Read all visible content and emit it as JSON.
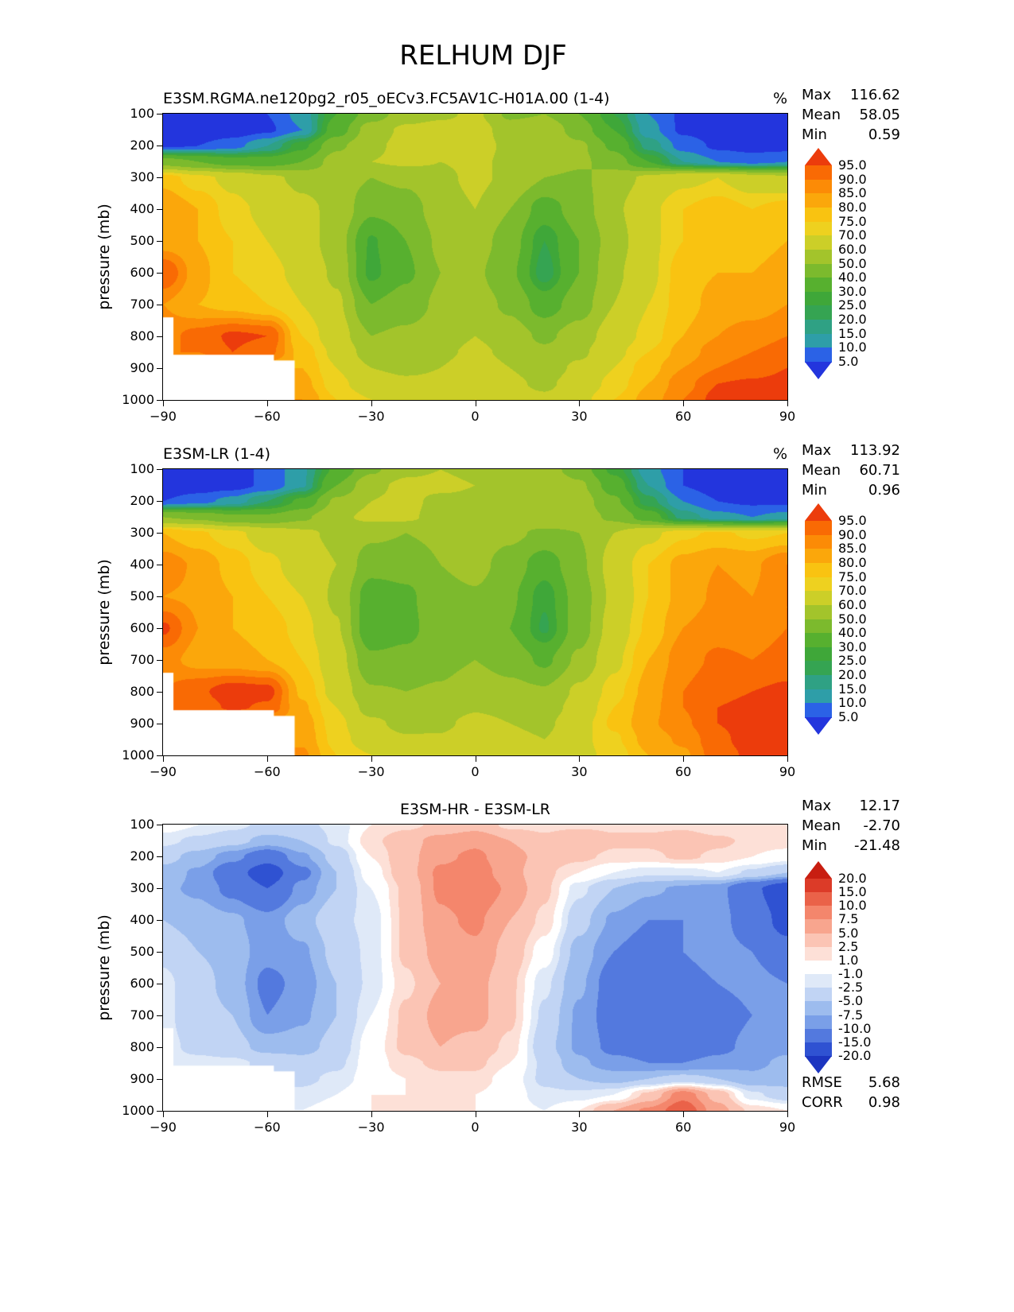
{
  "title": "RELHUM DJF",
  "axis": {
    "ylabel": "pressure (mb)",
    "yticks": [
      "100",
      "200",
      "300",
      "400",
      "500",
      "600",
      "700",
      "800",
      "900",
      "1000"
    ],
    "xticks": [
      "−90",
      "−60",
      "−30",
      "0",
      "30",
      "60",
      "90"
    ]
  },
  "panels": [
    {
      "title": "E3SM.RGMA.ne120pg2_r05_oECv3.FC5AV1C-H01A.00 (1-4)",
      "units": "%",
      "stats": [
        {
          "label": "Max",
          "value": "116.62"
        },
        {
          "label": "Mean",
          "value": "58.05"
        },
        {
          "label": "Min",
          "value": "0.59"
        }
      ],
      "colorbar_labels": [
        "95.0",
        "90.0",
        "85.0",
        "80.0",
        "75.0",
        "70.0",
        "60.0",
        "50.0",
        "40.0",
        "30.0",
        "25.0",
        "20.0",
        "15.0",
        "10.0",
        "5.0"
      ]
    },
    {
      "title": "E3SM-LR (1-4)",
      "units": "%",
      "stats": [
        {
          "label": "Max",
          "value": "113.92"
        },
        {
          "label": "Mean",
          "value": "60.71"
        },
        {
          "label": "Min",
          "value": "0.96"
        }
      ],
      "colorbar_labels": [
        "95.0",
        "90.0",
        "85.0",
        "80.0",
        "75.0",
        "70.0",
        "60.0",
        "50.0",
        "40.0",
        "30.0",
        "25.0",
        "20.0",
        "15.0",
        "10.0",
        "5.0"
      ]
    },
    {
      "title": "E3SM-HR - E3SM-LR",
      "units": "",
      "stats": [
        {
          "label": "Max",
          "value": "12.17"
        },
        {
          "label": "Mean",
          "value": "-2.70"
        },
        {
          "label": "Min",
          "value": "-21.48"
        }
      ],
      "colorbar_labels": [
        "20.0",
        "15.0",
        "10.0",
        "7.5",
        "5.0",
        "2.5",
        "1.0",
        "-1.0",
        "-2.5",
        "-5.0",
        "-7.5",
        "-10.0",
        "-15.0",
        "-20.0"
      ],
      "footer_stats": [
        {
          "label": "RMSE",
          "value": "5.68"
        },
        {
          "label": "CORR",
          "value": "0.98"
        }
      ]
    }
  ],
  "chart_data": [
    {
      "type": "heatmap",
      "name": "E3SM-HR (1-4) relative humidity (%)",
      "x_lat": [
        -90,
        -80,
        -70,
        -60,
        -50,
        -40,
        -30,
        -20,
        -10,
        0,
        10,
        20,
        30,
        40,
        50,
        60,
        70,
        80,
        90
      ],
      "y_pressure_mb": [
        100,
        150,
        200,
        250,
        300,
        400,
        500,
        600,
        700,
        800,
        850,
        900,
        950,
        1000
      ],
      "levels": [
        5,
        10,
        15,
        20,
        25,
        30,
        40,
        50,
        60,
        70,
        75,
        80,
        85,
        90,
        95
      ],
      "colors": [
        "#2335dd",
        "#2b62e6",
        "#2e9ea8",
        "#2fa184",
        "#35a452",
        "#3fa739",
        "#57b02f",
        "#7cba2d",
        "#a3c42b",
        "#cccf28",
        "#eed11f",
        "#f9c311",
        "#fba70b",
        "#fc8b06",
        "#f96a04",
        "#ec3c0c"
      ],
      "mask_lat_pressure_rects": [
        [
          -90,
          -58,
          860,
          1000
        ],
        [
          -90,
          -52,
          878,
          1000
        ],
        [
          -90,
          -87,
          742,
          1000
        ]
      ],
      "values": [
        [
          2,
          2,
          3,
          5,
          12,
          30,
          45,
          55,
          58,
          62,
          48,
          50,
          40,
          25,
          10,
          4,
          2,
          2,
          2
        ],
        [
          1,
          1,
          2,
          4,
          10,
          35,
          55,
          62,
          64,
          65,
          55,
          58,
          45,
          30,
          12,
          4,
          2,
          1,
          1
        ],
        [
          4,
          5,
          8,
          15,
          28,
          48,
          58,
          63,
          62,
          64,
          58,
          60,
          52,
          38,
          18,
          8,
          4,
          3,
          3
        ],
        [
          45,
          40,
          35,
          35,
          40,
          55,
          60,
          62,
          60,
          62,
          58,
          58,
          52,
          45,
          30,
          15,
          10,
          8,
          10
        ],
        [
          78,
          72,
          68,
          62,
          58,
          55,
          50,
          52,
          58,
          62,
          58,
          50,
          48,
          55,
          62,
          68,
          70,
          65,
          62
        ],
        [
          85,
          80,
          72,
          68,
          62,
          58,
          42,
          45,
          55,
          60,
          50,
          35,
          45,
          58,
          68,
          75,
          78,
          75,
          78
        ],
        [
          82,
          80,
          75,
          70,
          65,
          55,
          29,
          40,
          52,
          55,
          45,
          25,
          40,
          55,
          68,
          75,
          80,
          78,
          80
        ],
        [
          95,
          82,
          75,
          72,
          68,
          58,
          28,
          38,
          50,
          52,
          42,
          22,
          40,
          58,
          68,
          78,
          80,
          80,
          82
        ],
        [
          85,
          80,
          78,
          75,
          70,
          62,
          40,
          45,
          52,
          55,
          48,
          35,
          45,
          60,
          70,
          78,
          82,
          82,
          85
        ],
        [
          88,
          92,
          96,
          95,
          75,
          65,
          50,
          52,
          55,
          60,
          55,
          48,
          55,
          65,
          72,
          80,
          85,
          88,
          90
        ],
        [
          null,
          90,
          95,
          92,
          78,
          68,
          55,
          55,
          58,
          62,
          58,
          52,
          58,
          68,
          75,
          82,
          88,
          90,
          92
        ],
        [
          null,
          null,
          null,
          null,
          80,
          70,
          60,
          58,
          60,
          65,
          60,
          55,
          62,
          70,
          78,
          85,
          90,
          92,
          95
        ],
        [
          null,
          null,
          null,
          null,
          82,
          72,
          65,
          62,
          62,
          68,
          62,
          58,
          65,
          72,
          80,
          88,
          95,
          96,
          97
        ],
        [
          null,
          null,
          null,
          null,
          85,
          75,
          70,
          68,
          65,
          70,
          65,
          62,
          68,
          75,
          82,
          90,
          97,
          98,
          98
        ]
      ]
    },
    {
      "type": "heatmap",
      "name": "E3SM-LR (1-4) relative humidity (%)",
      "x_lat": [
        -90,
        -80,
        -70,
        -60,
        -50,
        -40,
        -30,
        -20,
        -10,
        0,
        10,
        20,
        30,
        40,
        50,
        60,
        70,
        80,
        90
      ],
      "y_pressure_mb": [
        100,
        150,
        200,
        250,
        300,
        400,
        500,
        600,
        700,
        800,
        850,
        900,
        950,
        1000
      ],
      "levels": [
        5,
        10,
        15,
        20,
        25,
        30,
        40,
        50,
        60,
        70,
        75,
        80,
        85,
        90,
        95
      ],
      "colors": [
        "#2335dd",
        "#2b62e6",
        "#2e9ea8",
        "#2fa184",
        "#35a452",
        "#3fa739",
        "#57b02f",
        "#7cba2d",
        "#a3c42b",
        "#cccf28",
        "#eed11f",
        "#f9c311",
        "#fba70b",
        "#fc8b06",
        "#f96a04",
        "#ec3c0c"
      ],
      "mask_lat_pressure_rects": [
        [
          -90,
          -58,
          860,
          1000
        ],
        [
          -90,
          -52,
          878,
          1000
        ],
        [
          -90,
          -87,
          742,
          1000
        ]
      ],
      "values": [
        [
          2,
          2,
          3,
          6,
          14,
          32,
          48,
          58,
          60,
          58,
          50,
          55,
          45,
          28,
          12,
          5,
          2,
          2,
          2
        ],
        [
          1,
          2,
          3,
          6,
          14,
          40,
          58,
          62,
          62,
          60,
          52,
          60,
          52,
          35,
          15,
          5,
          2,
          1,
          1
        ],
        [
          5,
          8,
          12,
          20,
          32,
          52,
          60,
          62,
          58,
          58,
          55,
          60,
          55,
          42,
          22,
          10,
          5,
          4,
          4
        ],
        [
          50,
          48,
          42,
          42,
          48,
          58,
          62,
          62,
          56,
          56,
          55,
          58,
          55,
          48,
          35,
          18,
          12,
          10,
          12
        ],
        [
          80,
          76,
          72,
          66,
          62,
          58,
          52,
          50,
          52,
          55,
          52,
          48,
          50,
          60,
          68,
          74,
          76,
          74,
          75
        ],
        [
          88,
          84,
          78,
          72,
          66,
          60,
          44,
          44,
          50,
          53,
          46,
          34,
          48,
          64,
          75,
          82,
          85,
          84,
          90
        ],
        [
          85,
          84,
          80,
          75,
          70,
          58,
          34,
          38,
          47,
          49,
          42,
          26,
          45,
          62,
          75,
          82,
          86,
          85,
          90
        ],
        [
          96,
          85,
          80,
          78,
          73,
          61,
          32,
          37,
          46,
          47,
          40,
          24,
          45,
          65,
          76,
          85,
          88,
          87,
          90
        ],
        [
          87,
          83,
          82,
          80,
          75,
          65,
          42,
          43,
          47,
          50,
          46,
          38,
          52,
          68,
          80,
          88,
          91,
          90,
          92
        ],
        [
          90,
          94,
          98,
          97,
          79,
          67,
          51,
          50,
          51,
          56,
          53,
          51,
          62,
          73,
          82,
          90,
          94,
          95,
          96
        ],
        [
          null,
          92,
          96,
          94,
          81,
          70,
          56,
          54,
          55,
          59,
          57,
          55,
          64,
          75,
          83,
          90,
          95,
          96,
          97
        ],
        [
          null,
          null,
          null,
          null,
          83,
          72,
          62,
          57,
          58,
          63,
          60,
          58,
          67,
          76,
          84,
          89,
          95,
          97,
          98
        ],
        [
          null,
          null,
          null,
          null,
          84,
          73,
          65,
          61,
          61,
          67,
          62,
          60,
          68,
          74,
          82,
          86,
          94,
          97,
          99
        ],
        [
          null,
          null,
          null,
          null,
          86,
          75,
          70,
          66,
          64,
          69,
          64,
          61,
          68,
          72,
          80,
          84,
          93,
          96,
          98
        ]
      ]
    },
    {
      "type": "heatmap",
      "name": "E3SM-HR minus E3SM-LR relative humidity difference (%)",
      "x_lat": [
        -90,
        -80,
        -70,
        -60,
        -50,
        -40,
        -30,
        -20,
        -10,
        0,
        10,
        20,
        30,
        40,
        50,
        60,
        70,
        80,
        90
      ],
      "y_pressure_mb": [
        100,
        150,
        200,
        250,
        300,
        400,
        500,
        600,
        700,
        800,
        850,
        900,
        950,
        1000
      ],
      "levels": [
        -20,
        -15,
        -10,
        -7.5,
        -5,
        -2.5,
        -1,
        1,
        2.5,
        5,
        7.5,
        10,
        15,
        20
      ],
      "colors": [
        "#1c35c0",
        "#2f52d2",
        "#5379de",
        "#7a9fe8",
        "#9dbcee",
        "#c1d4f4",
        "#dfe9f8",
        "#ffffff",
        "#fde0d7",
        "#fbc4b4",
        "#f8a58e",
        "#f4866c",
        "#ea6249",
        "#dc3b28",
        "#c81e11"
      ],
      "mask_lat_pressure_rects": [
        [
          -90,
          -58,
          860,
          1000
        ],
        [
          -90,
          -52,
          878,
          1000
        ],
        [
          -90,
          -87,
          742,
          1000
        ]
      ],
      "values": [
        [
          0,
          -1,
          -2,
          -3,
          -3,
          -2,
          1,
          2,
          3,
          4,
          2,
          2,
          2,
          2,
          2,
          2,
          1,
          1,
          1
        ],
        [
          -2,
          -3,
          -4,
          -6,
          -5,
          -2,
          2,
          4,
          6,
          7,
          5,
          3,
          5,
          3,
          3,
          4,
          3,
          2,
          2
        ],
        [
          -4,
          -6,
          -9,
          -13,
          -8,
          -4,
          1,
          4,
          7,
          8,
          6,
          4,
          3,
          2,
          2,
          3,
          2,
          1,
          0
        ],
        [
          -6,
          -8,
          -13,
          -18,
          -11,
          -5,
          0,
          4,
          8,
          9,
          6,
          3,
          1,
          -1,
          -2,
          -2,
          -1,
          -3,
          -5
        ],
        [
          -7,
          -8,
          -11,
          -15,
          -9,
          -5,
          -1,
          3,
          8,
          10,
          7,
          3,
          -2,
          -5,
          -7,
          -8,
          -9,
          -14,
          -19
        ],
        [
          -5,
          -6,
          -7,
          -9,
          -6,
          -3,
          -2,
          3,
          7,
          8,
          5,
          2,
          -4,
          -8,
          -10,
          -10,
          -9,
          -12,
          -17
        ],
        [
          -3,
          -5,
          -6,
          -9,
          -8,
          -4,
          -2,
          3,
          6,
          7,
          4,
          0,
          -6,
          -10,
          -12,
          -10,
          -9,
          -10,
          -13
        ],
        [
          -2,
          -4,
          -6,
          -11,
          -9,
          -5,
          -2,
          2,
          5,
          6,
          3,
          -2,
          -7,
          -12,
          -13,
          -11,
          -10,
          -9,
          -10
        ],
        [
          -2,
          -4,
          -5,
          -10,
          -8,
          -5,
          -1,
          3,
          6,
          6,
          3,
          -3,
          -8,
          -12,
          -13,
          -14,
          -12,
          -10,
          -9
        ],
        [
          -2,
          -3,
          -4,
          -6,
          -6,
          -4,
          0,
          3,
          5,
          4,
          2,
          -4,
          -8,
          -11,
          -12,
          -13,
          -11,
          -9,
          -8
        ],
        [
          null,
          -2,
          -2,
          -3,
          -4,
          -3,
          0,
          2,
          3,
          3,
          1,
          -3,
          -7,
          -9,
          -10,
          -10,
          -9,
          -8,
          -7
        ],
        [
          null,
          null,
          null,
          null,
          -3,
          -2,
          0,
          1,
          2,
          2,
          0,
          -3,
          -5,
          -6,
          -5,
          -4,
          -5,
          -7,
          -6
        ],
        [
          null,
          null,
          null,
          null,
          -2,
          -1,
          1,
          1,
          1,
          1,
          0,
          -2,
          -2,
          -1,
          3,
          9,
          4,
          -2,
          -4
        ],
        [
          null,
          null,
          null,
          null,
          -1,
          0,
          1,
          2,
          1,
          1,
          0,
          -1,
          1,
          5,
          8,
          12,
          6,
          2,
          1
        ]
      ]
    }
  ]
}
